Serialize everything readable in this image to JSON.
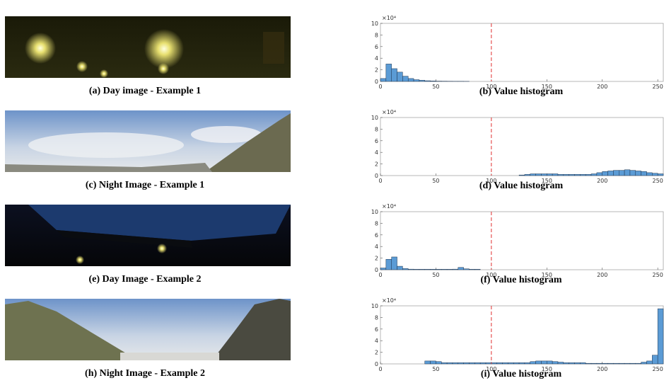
{
  "images": [
    {
      "caption": "(a) Day image - Example 1"
    },
    {
      "caption": "(c) Night Image - Example 1"
    },
    {
      "caption": "(e) Day Image - Example 2"
    },
    {
      "caption": "(h) Night Image - Example 2"
    }
  ],
  "chart_data": [
    {
      "type": "histogram",
      "title": "(b) Value histogram",
      "axis_multiplier": "×10⁴",
      "color": "#5b9bd5",
      "threshold": 100,
      "threshold_color": "#e03030",
      "bins": [
        0,
        5,
        10,
        15,
        20,
        25,
        30,
        35,
        40,
        45,
        50,
        55,
        60,
        65,
        70,
        75,
        80,
        85,
        90,
        95,
        100,
        105,
        110,
        115,
        120,
        125,
        130,
        135,
        140,
        145,
        150,
        155,
        160,
        165,
        170,
        175,
        180,
        185,
        190,
        195,
        200,
        205,
        210,
        215,
        220,
        225,
        230,
        235,
        240,
        245,
        250,
        255
      ],
      "values": [
        0.5,
        3.0,
        2.2,
        1.6,
        0.9,
        0.5,
        0.3,
        0.2,
        0.12,
        0.08,
        0.05,
        0.04,
        0.03,
        0.02,
        0.02,
        0.01,
        0,
        0,
        0,
        0,
        0,
        0,
        0,
        0,
        0,
        0,
        0,
        0,
        0,
        0,
        0,
        0,
        0,
        0,
        0,
        0,
        0,
        0,
        0,
        0,
        0,
        0,
        0,
        0,
        0,
        0,
        0,
        0,
        0,
        0,
        0
      ],
      "xlim": [
        0,
        255
      ],
      "xticks": [
        0,
        50,
        100,
        150,
        200,
        250
      ],
      "ylim": [
        0,
        10
      ],
      "yticks": [
        0,
        2,
        4,
        6,
        8,
        10
      ]
    },
    {
      "type": "histogram",
      "title": "(d) Value histogram",
      "axis_multiplier": "×10⁴",
      "color": "#5b9bd5",
      "threshold": 100,
      "threshold_color": "#e03030",
      "bins": [
        0,
        5,
        10,
        15,
        20,
        25,
        30,
        35,
        40,
        45,
        50,
        55,
        60,
        65,
        70,
        75,
        80,
        85,
        90,
        95,
        100,
        105,
        110,
        115,
        120,
        125,
        130,
        135,
        140,
        145,
        150,
        155,
        160,
        165,
        170,
        175,
        180,
        185,
        190,
        195,
        200,
        205,
        210,
        215,
        220,
        225,
        230,
        235,
        240,
        245,
        250,
        255
      ],
      "values": [
        0,
        0,
        0,
        0,
        0,
        0,
        0,
        0,
        0,
        0,
        0,
        0,
        0,
        0,
        0,
        0,
        0,
        0,
        0,
        0,
        0,
        0,
        0,
        0,
        0,
        0.1,
        0.2,
        0.3,
        0.3,
        0.3,
        0.3,
        0.3,
        0.2,
        0.2,
        0.2,
        0.2,
        0.2,
        0.2,
        0.3,
        0.5,
        0.7,
        0.8,
        0.9,
        0.9,
        1.0,
        0.9,
        0.8,
        0.7,
        0.5,
        0.4,
        0.3
      ],
      "xlim": [
        0,
        255
      ],
      "xticks": [
        0,
        50,
        100,
        150,
        200,
        250
      ],
      "ylim": [
        0,
        10
      ],
      "yticks": [
        0,
        2,
        4,
        6,
        8,
        10
      ]
    },
    {
      "type": "histogram",
      "title": "(f) Value histogram",
      "axis_multiplier": "×10⁴",
      "color": "#5b9bd5",
      "threshold": 100,
      "threshold_color": "#e03030",
      "bins": [
        0,
        5,
        10,
        15,
        20,
        25,
        30,
        35,
        40,
        45,
        50,
        55,
        60,
        65,
        70,
        75,
        80,
        85,
        90,
        95,
        100,
        105,
        110,
        115,
        120,
        125,
        130,
        135,
        140,
        145,
        150,
        155,
        160,
        165,
        170,
        175,
        180,
        185,
        190,
        195,
        200,
        205,
        210,
        215,
        220,
        225,
        230,
        235,
        240,
        245,
        250,
        255
      ],
      "values": [
        0.3,
        1.8,
        2.2,
        0.6,
        0.2,
        0.1,
        0.08,
        0.08,
        0.08,
        0.08,
        0.08,
        0.08,
        0.08,
        0.1,
        0.4,
        0.15,
        0.08,
        0.08,
        0,
        0,
        0,
        0,
        0,
        0,
        0,
        0,
        0,
        0,
        0,
        0,
        0,
        0,
        0,
        0,
        0,
        0,
        0,
        0,
        0,
        0,
        0,
        0,
        0,
        0,
        0,
        0,
        0,
        0,
        0,
        0,
        0
      ],
      "xlim": [
        0,
        255
      ],
      "xticks": [
        0,
        50,
        100,
        150,
        200,
        250
      ],
      "ylim": [
        0,
        10
      ],
      "yticks": [
        0,
        2,
        4,
        6,
        8,
        10
      ]
    },
    {
      "type": "histogram",
      "title": "(i) Value histogram",
      "axis_multiplier": "×10⁴",
      "color": "#5b9bd5",
      "threshold": 100,
      "threshold_color": "#e03030",
      "bins": [
        0,
        5,
        10,
        15,
        20,
        25,
        30,
        35,
        40,
        45,
        50,
        55,
        60,
        65,
        70,
        75,
        80,
        85,
        90,
        95,
        100,
        105,
        110,
        115,
        120,
        125,
        130,
        135,
        140,
        145,
        150,
        155,
        160,
        165,
        170,
        175,
        180,
        185,
        190,
        195,
        200,
        205,
        210,
        215,
        220,
        225,
        230,
        235,
        240,
        245,
        250,
        255
      ],
      "values": [
        0,
        0,
        0,
        0,
        0,
        0,
        0,
        0,
        0.5,
        0.5,
        0.4,
        0.2,
        0.2,
        0.2,
        0.2,
        0.2,
        0.2,
        0.2,
        0.2,
        0.2,
        0.2,
        0.2,
        0.2,
        0.2,
        0.2,
        0.2,
        0.2,
        0.4,
        0.5,
        0.5,
        0.5,
        0.4,
        0.3,
        0.2,
        0.2,
        0.2,
        0.2,
        0.1,
        0.1,
        0.1,
        0.1,
        0.1,
        0.1,
        0.1,
        0.1,
        0.1,
        0.1,
        0.3,
        0.5,
        1.5,
        9.5
      ],
      "xlim": [
        0,
        255
      ],
      "xticks": [
        0,
        50,
        100,
        150,
        200,
        250
      ],
      "ylim": [
        0,
        10
      ],
      "yticks": [
        0,
        2,
        4,
        6,
        8,
        10
      ]
    }
  ]
}
